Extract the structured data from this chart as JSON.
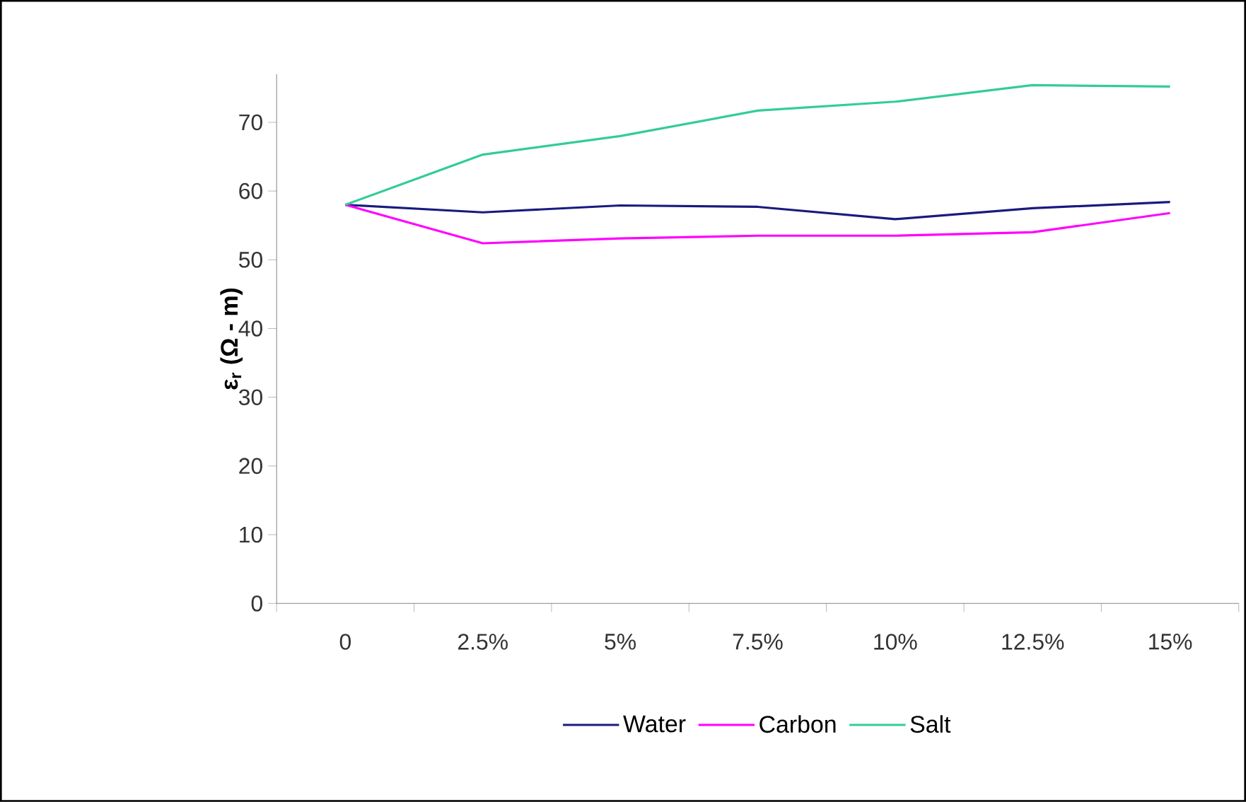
{
  "chart_data": {
    "type": "line",
    "ylabel": "ε$_{r}$ (Ω - m)",
    "categories": [
      "0",
      "2.5%",
      "5%",
      "7.5%",
      "10%",
      "12.5%",
      "15%"
    ],
    "series": [
      {
        "name": "Water",
        "color": "#1a1a80",
        "values": [
          58.0,
          56.9,
          57.9,
          57.7,
          55.9,
          57.5,
          58.4
        ]
      },
      {
        "name": "Carbon",
        "color": "#ff00ff",
        "values": [
          58.0,
          52.4,
          53.1,
          53.5,
          53.5,
          54.0,
          56.8
        ]
      },
      {
        "name": "Salt",
        "color": "#33cc99",
        "values": [
          58.0,
          65.3,
          68.0,
          71.7,
          73.0,
          75.4,
          75.2
        ]
      }
    ],
    "ylim": [
      0,
      77
    ],
    "yticks": [
      0,
      10,
      20,
      30,
      40,
      50,
      60,
      70
    ],
    "grid": false,
    "legend": "bottom",
    "marker": "none",
    "line_style": "solid"
  }
}
